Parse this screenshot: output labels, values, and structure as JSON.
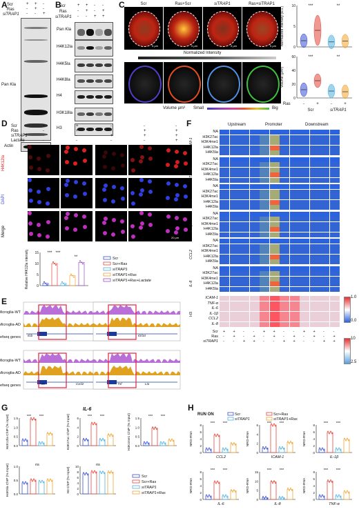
{
  "panels": {
    "A": "A",
    "B": "B",
    "C": "C",
    "D": "D",
    "E": "E",
    "F": "F",
    "G": "G",
    "H": "H"
  },
  "A": {
    "rows": [
      "Scr",
      "Ras",
      "siTRAP1"
    ],
    "signs": [
      [
        "+",
        "+",
        "-"
      ],
      [
        "-",
        "+",
        "-"
      ],
      [
        "-",
        "-",
        "+"
      ]
    ],
    "labels": {
      "pankla": "Pan Kla",
      "actin": "Actin"
    }
  },
  "B": {
    "rows": [
      "Scr",
      "Ras",
      "siTRAP1"
    ],
    "signs": [
      [
        "+",
        "+",
        "-",
        "-"
      ],
      [
        "-",
        "+",
        "-",
        "+"
      ],
      [
        "-",
        "-",
        "+",
        "+"
      ]
    ],
    "blots": [
      "Pan Kla",
      "H4K12la",
      "H4K5la",
      "H4K8la",
      "H4",
      "H3K18la",
      "H3"
    ]
  },
  "C": {
    "titles": [
      "Scr",
      "Ras+Scr",
      "siTRAP1",
      "Ras+siTRAP1"
    ],
    "norm_label": "Normalized Intensity",
    "volume_label": "Volume μm³",
    "small": "Small",
    "big": "Big",
    "scale": "5 μm",
    "plot1_ylabel": "Normalized intensity (a.u.)",
    "plot1_yticks": [
      "0",
      "5",
      "10"
    ],
    "plot2_ylabel": "Volume (μm³)",
    "plot2_yticks": [
      "0",
      "20",
      "40",
      "60"
    ],
    "sig": [
      "***",
      "**"
    ],
    "ras_row": "Ras",
    "ras_signs": [
      "-",
      "+",
      "-",
      "+"
    ],
    "groups": [
      "Scr",
      "siTRAP1"
    ]
  },
  "D": {
    "rows": [
      "Scr",
      "Ras",
      "siTRAP1",
      "Lactate"
    ],
    "signs": [
      [
        "+",
        "+",
        "-",
        "-",
        "-"
      ],
      [
        "-",
        "+",
        "-",
        "+",
        "+"
      ],
      [
        "-",
        "-",
        "+",
        "+",
        "+"
      ],
      [
        "-",
        "-",
        "-",
        "-",
        "+"
      ]
    ],
    "row_labels": [
      "H4K12la",
      "DAPI",
      "Merge"
    ],
    "scale": "20 μm",
    "ylabel": "Relative H4K12la intensity",
    "yticks": [
      "0",
      "5",
      "10",
      "15"
    ],
    "sig": [
      "***",
      "***",
      "**"
    ],
    "legend": [
      "Scr",
      "Scr+Ras",
      "siTRAP1",
      "siTRAP1+Ras",
      "siTRAP1+Ras+Lactate"
    ]
  },
  "E": {
    "tracks": [
      "Microglia-WT",
      "Microglia-AD",
      "Refseq genes"
    ],
    "genes": [
      "Il1b",
      "Il1f10",
      "Il6",
      "Cxcl2",
      "Tnf",
      "Lta"
    ]
  },
  "F": {
    "cols": [
      "Upstream",
      "Promoter",
      "Downstream"
    ],
    "genes": [
      "ICAM-1",
      "TNF-α",
      "IL-6",
      "IL-1β",
      "CCL2",
      "IL-8"
    ],
    "marks": [
      "NA",
      "H3K27ac",
      "H3K4me1",
      "H4K12la",
      "H4K5la"
    ],
    "h3_label": "H3",
    "h3_rows": [
      "ICAM-1",
      "TNF-α",
      "IL-6",
      "IL-1β",
      "CCL2",
      "IL-8"
    ],
    "scale1": [
      "1.0",
      "0.0"
    ],
    "scale2": [
      "10",
      "2.5"
    ],
    "bottom_rows": [
      "Scr",
      "Ras",
      "siTRAP1"
    ],
    "bottom_signs": [
      [
        "+",
        "+",
        "-",
        "-",
        "+",
        "+",
        "-",
        "-",
        "+",
        "+",
        "-",
        "-"
      ],
      [
        "-",
        "+",
        "-",
        "+",
        "-",
        "+",
        "-",
        "+",
        "-",
        "+",
        "-",
        "+"
      ],
      [
        "-",
        "-",
        "+",
        "+",
        "-",
        "-",
        "+",
        "+",
        "-",
        "-",
        "+",
        "+"
      ]
    ]
  },
  "G": {
    "title": "IL-6",
    "plots": [
      {
        "ylabel": "H4K12la ChIP (% input)",
        "yticks": [
          "0.0",
          "0.5",
          "1.0",
          "1.5"
        ],
        "sig": [
          "***",
          "***"
        ],
        "values": [
          0.3,
          1.45,
          0.15,
          0.65
        ]
      },
      {
        "ylabel": "H3K27ac ChIP (% Input)",
        "yticks": [
          "0",
          "2",
          "4",
          "6"
        ],
        "sig": [
          "***",
          "***"
        ],
        "values": [
          1.3,
          4.8,
          1.3,
          2.3
        ]
      },
      {
        "ylabel": "H3K4me1 ChIP (% Input)",
        "yticks": [
          "0.0",
          "0.5",
          "1.0",
          "1.5"
        ],
        "sig": [
          "***",
          "***"
        ],
        "values": [
          0.15,
          0.95,
          0.15,
          0.3
        ]
      },
      {
        "ylabel": "H4K5la ChIP (% Input)",
        "yticks": [
          "0.0",
          "0.5",
          "1.0"
        ],
        "sig": [
          "ns"
        ],
        "values": [
          0.4,
          0.5,
          0.45,
          0.5
        ]
      },
      {
        "ylabel": "H3 ChIP (% Input)",
        "yticks": [
          "0",
          "2",
          "4",
          "6",
          "8",
          "10"
        ],
        "sig": [
          "ns"
        ],
        "values": [
          7.3,
          8.0,
          7.8,
          7.9
        ]
      }
    ],
    "legend": [
      "Scr",
      "Scr+Ras",
      "siTRAP1",
      "siTRAP1+Ras"
    ]
  },
  "H": {
    "title": "RUN ON",
    "legend": [
      "Scr",
      "Scr+Ras",
      "siTRAP1",
      "siTRAP1+Ras"
    ],
    "plots": [
      {
        "gene": "CCL2",
        "ylabel": "NRO-RNA",
        "yticks": [
          "0",
          "2",
          "4",
          "6",
          "8"
        ],
        "sig": [
          "***",
          "***"
        ],
        "values": [
          1.0,
          5.0,
          1.0,
          2.5
        ]
      },
      {
        "gene": "ICAM-1",
        "ylabel": "NRO-RNA",
        "yticks": [
          "0",
          "2",
          "4",
          "6"
        ],
        "sig": [
          "***",
          "***"
        ],
        "values": [
          1.0,
          6.0,
          1.0,
          2.2
        ]
      },
      {
        "gene": "IL-1β",
        "ylabel": "NRO-RNA",
        "yticks": [
          "0",
          "2",
          "4",
          "6",
          "8"
        ],
        "sig": [
          "***",
          "***"
        ],
        "values": [
          1.0,
          5.8,
          1.0,
          3.8
        ]
      },
      {
        "gene": "IL-6",
        "ylabel": "NRO-RNA",
        "yticks": [
          "0",
          "2",
          "4",
          "6",
          "8"
        ],
        "sig": [
          "***",
          "***"
        ],
        "values": [
          1.0,
          5.0,
          1.0,
          2.5
        ]
      },
      {
        "gene": "IL-8",
        "ylabel": "NRO-RNA",
        "yticks": [
          "0",
          "5",
          "10",
          "15"
        ],
        "sig": [
          "***",
          "***"
        ],
        "values": [
          1.0,
          9.5,
          1.0,
          5.5
        ]
      },
      {
        "gene": "TNF-α",
        "ylabel": "NRO-RNA",
        "yticks": [
          "0",
          "2",
          "4",
          "6",
          "8"
        ],
        "sig": [
          "***",
          "***"
        ],
        "values": [
          1.0,
          5.3,
          1.0,
          2.2
        ]
      }
    ]
  },
  "colors": {
    "scr": "#3b50d6",
    "ras": "#e4453a",
    "si": "#4fb3e0",
    "siras": "#f0a532",
    "lact": "#9b4fc8"
  }
}
